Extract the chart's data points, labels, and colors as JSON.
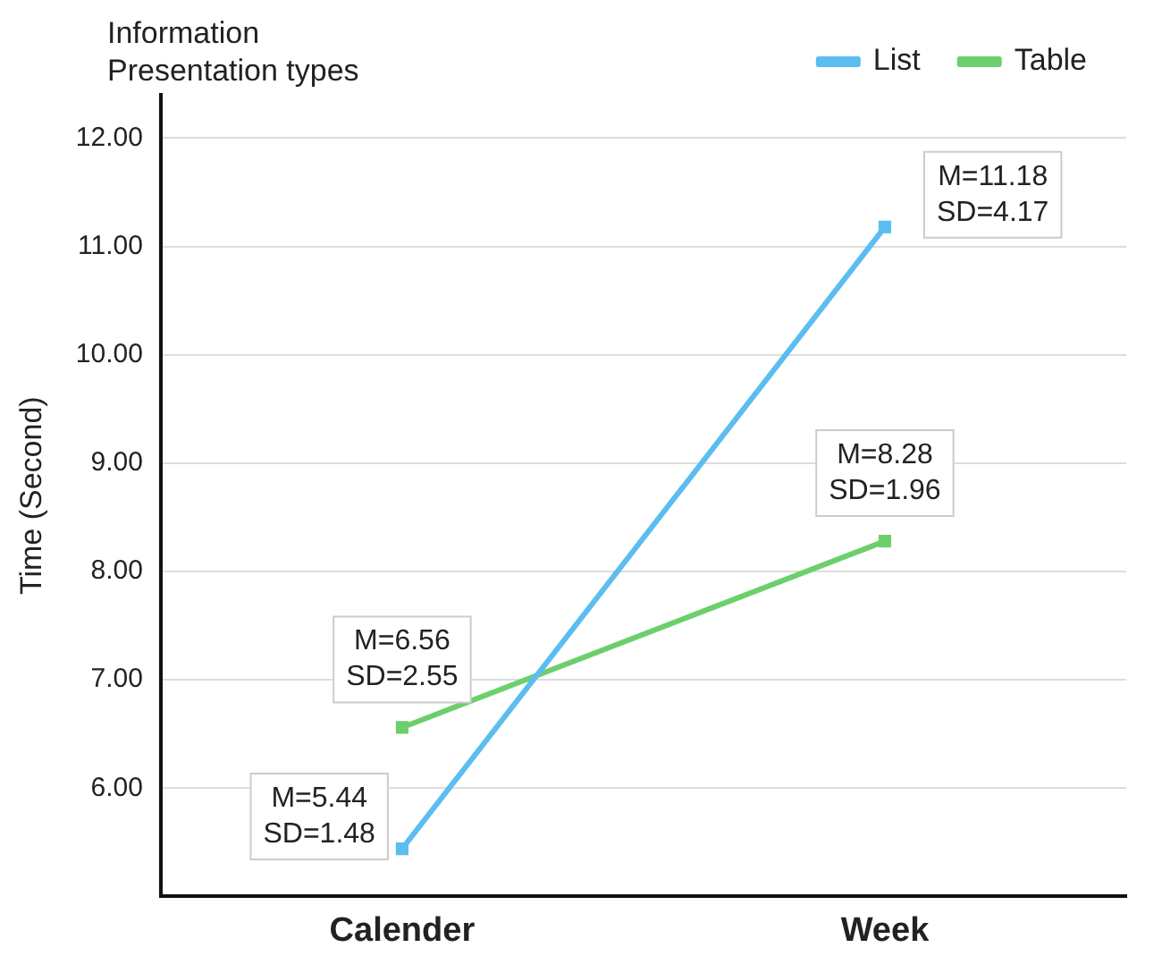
{
  "chart_data": {
    "type": "line",
    "ylabel": "Time (Second)",
    "legend_title": "Information Presentation types",
    "legend": "top",
    "grid": "y",
    "marker": "square",
    "line_style": "solid",
    "categories": [
      "Calender",
      "Week"
    ],
    "series": [
      {
        "name": "List",
        "color": "#5bbdf0",
        "values": [
          5.44,
          11.18
        ]
      },
      {
        "name": "Table",
        "color": "#6ccf6c",
        "values": [
          6.56,
          8.28
        ]
      }
    ],
    "ylim": [
      5,
      12.4
    ],
    "yticks": [
      {
        "value": 6,
        "label": "6.00"
      },
      {
        "value": 7,
        "label": "7.00"
      },
      {
        "value": 8,
        "label": "8.00"
      },
      {
        "value": 9,
        "label": "9.00"
      },
      {
        "value": 10,
        "label": "10.00"
      },
      {
        "value": 11,
        "label": "11.00"
      },
      {
        "value": 12,
        "label": "12.00"
      }
    ],
    "annotations": [
      {
        "text": "M=5.44\nSD=1.48",
        "x": "Calender",
        "y": 5.44
      },
      {
        "text": "M=6.56\nSD=2.55",
        "x": "Calender",
        "y": 6.56
      },
      {
        "text": "M=11.18\nSD=4.17",
        "x": "Week",
        "y": 11.18
      },
      {
        "text": "M=8.28\nSD=1.96",
        "x": "Week",
        "y": 8.28
      }
    ]
  }
}
